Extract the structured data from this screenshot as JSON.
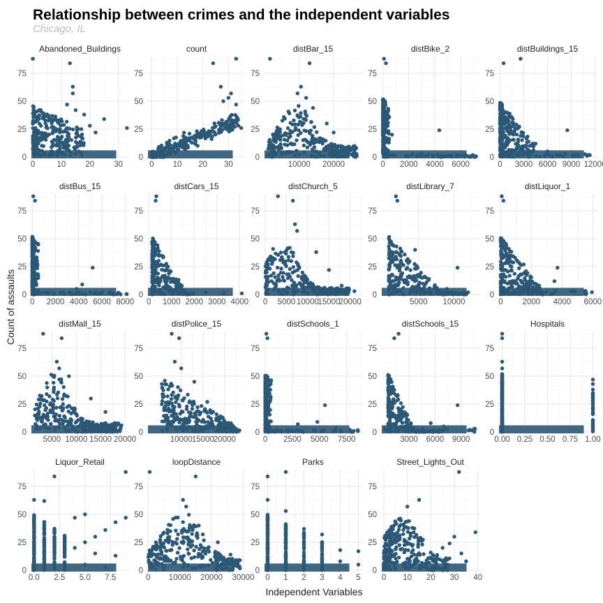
{
  "header": {
    "title": "Relationship between crimes and the independent variables",
    "subtitle": "Chicago, IL"
  },
  "colors": {
    "point": "#2b5876",
    "grid": "#e6e6e6"
  },
  "chart_data": {
    "type": "scatter",
    "title": "Relationship between crimes and the independent variables",
    "subtitle": "Chicago, IL",
    "xlabel": "Independent Variables",
    "ylabel": "Count of assaults",
    "ylim": [
      0,
      90
    ],
    "yticks": [
      0,
      25,
      50,
      75
    ],
    "panels": [
      {
        "name": "Abandoned_Buildings",
        "xlim": [
          -1,
          34
        ],
        "xticks": [
          0,
          10,
          20,
          30
        ],
        "xtick_labels": [
          "0",
          "10",
          "20",
          "30"
        ],
        "pattern": "abandoned",
        "points": [
          [
            0,
            88
          ],
          [
            13,
            84
          ],
          [
            14,
            63
          ],
          [
            14,
            57
          ],
          [
            12,
            47
          ],
          [
            15,
            42
          ],
          [
            18,
            38
          ],
          [
            25,
            34
          ],
          [
            33,
            26
          ],
          [
            22,
            22
          ],
          [
            20,
            28
          ],
          [
            16,
            19
          ],
          [
            17,
            25
          ]
        ]
      },
      {
        "name": "count",
        "xlim": [
          -2,
          37
        ],
        "xticks": [
          0,
          10,
          20,
          30
        ],
        "xtick_labels": [
          "0",
          "10",
          "20",
          "30"
        ],
        "pattern": "count",
        "points": [
          [
            24,
            84
          ],
          [
            33,
            88
          ],
          [
            27,
            63
          ],
          [
            31,
            57
          ],
          [
            30,
            53
          ],
          [
            35,
            26
          ],
          [
            28,
            50
          ],
          [
            33,
            47
          ]
        ]
      },
      {
        "name": "distBar_15",
        "xlim": [
          -500,
          28500
        ],
        "xticks": [
          10000,
          20000
        ],
        "xtick_labels": [
          "10000",
          "20000"
        ],
        "pattern": "bar",
        "points": [
          [
            1500,
            88
          ],
          [
            13000,
            84
          ],
          [
            10500,
            63
          ],
          [
            9500,
            57
          ],
          [
            12000,
            53
          ],
          [
            14000,
            44
          ],
          [
            18000,
            30
          ],
          [
            20000,
            22
          ]
        ]
      },
      {
        "name": "distBike_2",
        "xlim": [
          -200,
          7500
        ],
        "xticks": [
          0,
          2000,
          4000,
          6000
        ],
        "xtick_labels": [
          "0",
          "2000",
          "4000",
          "6000"
        ],
        "pattern": "decay",
        "points": [
          [
            80,
            88
          ],
          [
            230,
            84
          ],
          [
            4350,
            24
          ],
          [
            3000,
            3
          ],
          [
            2300,
            3
          ],
          [
            3500,
            2
          ],
          [
            5100,
            1
          ],
          [
            6500,
            1
          ],
          [
            700,
            20
          ]
        ]
      },
      {
        "name": "distBuildings_15",
        "xlim": [
          -300,
          12300
        ],
        "xticks": [
          0,
          3000,
          6000,
          9000,
          12000
        ],
        "xtick_labels": [
          "0",
          "3000",
          "6000",
          "9000",
          "12000"
        ],
        "pattern": "buildings",
        "points": [
          [
            2600,
            88
          ],
          [
            450,
            84
          ],
          [
            8500,
            24
          ],
          [
            6000,
            5
          ],
          [
            9800,
            2
          ],
          [
            11000,
            1
          ],
          [
            4500,
            12
          ]
        ]
      },
      {
        "name": "distBus_15",
        "xlim": [
          -200,
          8400
        ],
        "xticks": [
          0,
          2000,
          4000,
          6000,
          8000
        ],
        "xtick_labels": [
          "0",
          "2000",
          "4000",
          "6000",
          "8000"
        ],
        "pattern": "decay",
        "points": [
          [
            80,
            88
          ],
          [
            230,
            84
          ],
          [
            5200,
            24
          ],
          [
            3800,
            5
          ],
          [
            4300,
            9
          ],
          [
            6000,
            2
          ],
          [
            7500,
            1
          ]
        ]
      },
      {
        "name": "distCars_15",
        "xlim": [
          -100,
          4300
        ],
        "xticks": [
          0,
          1000,
          2000,
          3000,
          4000
        ],
        "xtick_labels": [
          "0",
          "1000",
          "2000",
          "3000",
          "4000"
        ],
        "pattern": "cars",
        "points": [
          [
            330,
            88
          ],
          [
            300,
            84
          ],
          [
            2500,
            2
          ],
          [
            3300,
            1
          ],
          [
            4100,
            1
          ]
        ]
      },
      {
        "name": "distChurch_5",
        "xlim": [
          -500,
          23000
        ],
        "xticks": [
          0,
          5000,
          10000,
          15000,
          20000
        ],
        "xtick_labels": [
          "0",
          "5000",
          "10000",
          "15000",
          "20000"
        ],
        "pattern": "church",
        "points": [
          [
            3000,
            88
          ],
          [
            6500,
            84
          ],
          [
            7000,
            63
          ],
          [
            7500,
            57
          ],
          [
            12000,
            38
          ],
          [
            15000,
            22
          ],
          [
            18000,
            8
          ],
          [
            21000,
            3
          ]
        ]
      },
      {
        "name": "distLibrary_7",
        "xlim": [
          -400,
          13700
        ],
        "xticks": [
          5000,
          10000
        ],
        "xtick_labels": [
          "5000",
          "10000"
        ],
        "pattern": "library",
        "points": [
          [
            1800,
            88
          ],
          [
            2000,
            84
          ],
          [
            10500,
            24
          ],
          [
            9000,
            5
          ],
          [
            12000,
            2
          ],
          [
            4500,
            40
          ]
        ]
      },
      {
        "name": "distLiquor_1",
        "xlim": [
          -200,
          6300
        ],
        "xticks": [
          0,
          2000,
          4000,
          6000
        ],
        "xtick_labels": [
          "0",
          "2000",
          "4000",
          "6000"
        ],
        "pattern": "liquor",
        "points": [
          [
            70,
            88
          ],
          [
            180,
            84
          ],
          [
            3700,
            24
          ],
          [
            3500,
            12
          ],
          [
            2500,
            8
          ],
          [
            4600,
            3
          ],
          [
            5500,
            1
          ],
          [
            1500,
            27
          ]
        ]
      },
      {
        "name": "distMall_15",
        "xlim": [
          500,
          21000
        ],
        "xticks": [
          5000,
          10000,
          15000,
          20000
        ],
        "xtick_labels": [
          "5000",
          "10000",
          "15000",
          "20000"
        ],
        "pattern": "mall",
        "points": [
          [
            3200,
            88
          ],
          [
            7000,
            84
          ],
          [
            6000,
            63
          ],
          [
            6500,
            57
          ],
          [
            8500,
            50
          ],
          [
            13000,
            30
          ],
          [
            16000,
            18
          ],
          [
            18000,
            8
          ]
        ]
      },
      {
        "name": "distPolice_15",
        "xlim": [
          2000,
          25000
        ],
        "xticks": [
          10000,
          15000,
          20000
        ],
        "xtick_labels": [
          "10000",
          "15000",
          "20000"
        ],
        "pattern": "police",
        "points": [
          [
            7800,
            88
          ],
          [
            9500,
            84
          ],
          [
            8500,
            63
          ],
          [
            10000,
            57
          ],
          [
            13000,
            45
          ],
          [
            16000,
            27
          ],
          [
            19000,
            14
          ],
          [
            22000,
            5
          ]
        ]
      },
      {
        "name": "distSchools_1",
        "xlim": [
          -200,
          9000
        ],
        "xticks": [
          0,
          2500,
          5000,
          7500
        ],
        "xtick_labels": [
          "0",
          "2500",
          "5000",
          "7500"
        ],
        "pattern": "decay",
        "points": [
          [
            100,
            88
          ],
          [
            200,
            84
          ],
          [
            5500,
            24
          ],
          [
            4800,
            9
          ],
          [
            6500,
            4
          ],
          [
            7800,
            2
          ],
          [
            3000,
            7
          ]
        ]
      },
      {
        "name": "distSchools_15",
        "xlim": [
          -300,
          11200
        ],
        "xticks": [
          3000,
          6000,
          9000
        ],
        "xtick_labels": [
          "3000",
          "6000",
          "9000"
        ],
        "pattern": "schools15",
        "points": [
          [
            1800,
            88
          ],
          [
            1300,
            84
          ],
          [
            8600,
            24
          ],
          [
            7000,
            5
          ],
          [
            10000,
            2
          ],
          [
            5500,
            8
          ]
        ]
      },
      {
        "name": "Hospitals",
        "xlim": [
          -0.05,
          1.05
        ],
        "xticks": [
          0,
          0.25,
          0.5,
          0.75,
          1
        ],
        "xtick_labels": [
          "0.00",
          "0.25",
          "0.50",
          "0.75",
          "1.00"
        ],
        "pattern": "hospitals",
        "points": [
          [
            0,
            88
          ],
          [
            0,
            84
          ],
          [
            0,
            63
          ],
          [
            0,
            57
          ],
          [
            1,
            47
          ],
          [
            1,
            43
          ],
          [
            1,
            38
          ]
        ]
      },
      {
        "name": "Liquor_Retail",
        "xlim": [
          -0.4,
          9.4
        ],
        "xticks": [
          0,
          2.5,
          5,
          7.5
        ],
        "xtick_labels": [
          "0.0",
          "2.5",
          "5.0",
          "7.5"
        ],
        "pattern": "liqretail",
        "points": [
          [
            9,
            88
          ],
          [
            2,
            84
          ],
          [
            0,
            63
          ],
          [
            1,
            62
          ],
          [
            9,
            47
          ],
          [
            8,
            43
          ],
          [
            7,
            36
          ],
          [
            6,
            30
          ],
          [
            5,
            50
          ],
          [
            4,
            47
          ],
          [
            6,
            15
          ],
          [
            5,
            5
          ],
          [
            7,
            3
          ],
          [
            8,
            13
          ],
          [
            4,
            20
          ],
          [
            5,
            25
          ]
        ]
      },
      {
        "name": "loopDistance",
        "xlim": [
          -500,
          31000
        ],
        "xticks": [
          0,
          10000,
          20000,
          30000
        ],
        "xtick_labels": [
          "0",
          "10000",
          "20000",
          "30000"
        ],
        "pattern": "loop",
        "points": [
          [
            500,
            88
          ],
          [
            15000,
            84
          ],
          [
            11000,
            63
          ],
          [
            12000,
            57
          ],
          [
            16000,
            40
          ],
          [
            22000,
            25
          ],
          [
            26000,
            14
          ]
        ]
      },
      {
        "name": "Parks",
        "xlim": [
          -0.25,
          5.25
        ],
        "xticks": [
          0,
          1,
          2,
          3,
          4,
          5
        ],
        "xtick_labels": [
          "0",
          "1",
          "2",
          "3",
          "4",
          "5"
        ],
        "pattern": "parks",
        "points": [
          [
            1,
            88
          ],
          [
            0,
            84
          ],
          [
            0,
            63
          ],
          [
            1,
            53
          ],
          [
            2,
            37
          ],
          [
            3,
            32
          ],
          [
            3,
            25
          ],
          [
            4,
            18
          ],
          [
            5,
            17
          ],
          [
            5,
            5
          ],
          [
            4,
            8
          ],
          [
            3,
            10
          ]
        ]
      },
      {
        "name": "Street_Lights_Out",
        "xlim": [
          -1.5,
          41
        ],
        "xticks": [
          0,
          10,
          20,
          30,
          40
        ],
        "xtick_labels": [
          "0",
          "10",
          "20",
          "30",
          "40"
        ],
        "pattern": "lights",
        "points": [
          [
            32,
            88
          ],
          [
            15,
            63
          ],
          [
            10,
            57
          ],
          [
            39,
            34
          ],
          [
            30,
            30
          ],
          [
            28,
            24
          ],
          [
            25,
            20
          ],
          [
            35,
            8
          ],
          [
            33,
            15
          ]
        ]
      }
    ]
  }
}
